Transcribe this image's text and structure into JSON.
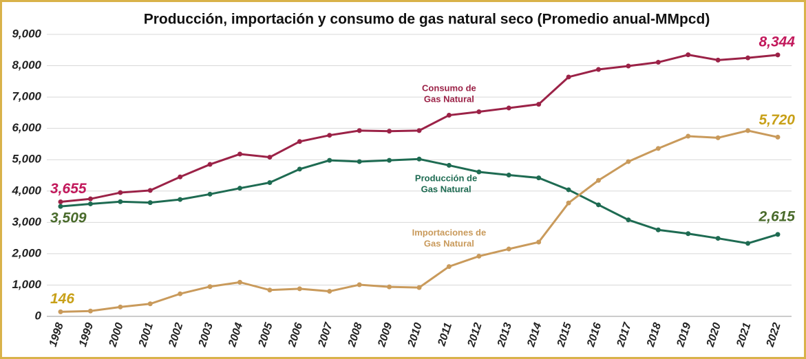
{
  "chart_data": {
    "type": "line",
    "title": "Producción, importación y consumo de gas natural seco (Promedio anual-MMpcd)",
    "categories": [
      "1998",
      "1999",
      "2000",
      "2001",
      "2002",
      "2003",
      "2004",
      "2005",
      "2006",
      "2007",
      "2008",
      "2009",
      "2010",
      "2011",
      "2012",
      "2013",
      "2014",
      "2015",
      "2016",
      "2017",
      "2018",
      "2019",
      "2020",
      "2021",
      "2022"
    ],
    "ylim": [
      0,
      9000
    ],
    "yticks": [
      0,
      {
        "value": 1000,
        "label": "1,000"
      },
      {
        "value": 2000,
        "label": "2,000"
      },
      {
        "value": 3000,
        "label": "3,000"
      },
      {
        "value": 4000,
        "label": "4,000"
      },
      {
        "value": 5000,
        "label": "5,000"
      },
      {
        "value": 6000,
        "label": "6,000"
      },
      {
        "value": 7000,
        "label": "7,000"
      },
      {
        "value": 8000,
        "label": "8,000"
      },
      {
        "value": 9000,
        "label": "9,000"
      }
    ],
    "grid": true,
    "series": [
      {
        "name": "Consumo de Gas Natural",
        "color": "#9b2247",
        "label_color": "#c2185b",
        "values": [
          3655,
          3750,
          3950,
          4020,
          4450,
          4850,
          5180,
          5080,
          5580,
          5780,
          5930,
          5910,
          5930,
          6420,
          6530,
          6650,
          6770,
          7640,
          7880,
          7990,
          8110,
          8350,
          8180,
          8250,
          8344
        ],
        "value_labels": [
          "3,655",
          null,
          null,
          null,
          null,
          null,
          null,
          null,
          null,
          null,
          null,
          null,
          null,
          null,
          null,
          null,
          null,
          null,
          null,
          null,
          null,
          null,
          null,
          null,
          "8,344"
        ]
      },
      {
        "name": "Producción de Gas Natural",
        "color": "#1e6b52",
        "label_color": "#4a6b2c",
        "values": [
          3509,
          3590,
          3660,
          3630,
          3730,
          3900,
          4090,
          4270,
          4700,
          4980,
          4940,
          4980,
          5020,
          4820,
          4610,
          4510,
          4420,
          4040,
          3560,
          3080,
          2760,
          2640,
          2490,
          2330,
          2615
        ],
        "value_labels": [
          "3,509",
          null,
          null,
          null,
          null,
          null,
          null,
          null,
          null,
          null,
          null,
          null,
          null,
          null,
          null,
          null,
          null,
          null,
          null,
          null,
          null,
          null,
          null,
          null,
          "2,615"
        ]
      },
      {
        "name": "Importaciones de Gas Natural",
        "color": "#c99a5b",
        "label_color": "#c8a018",
        "values": [
          146,
          170,
          300,
          400,
          720,
          950,
          1090,
          840,
          880,
          800,
          1010,
          940,
          920,
          1590,
          1920,
          2150,
          2370,
          3620,
          4340,
          4940,
          5360,
          5750,
          5700,
          5930,
          5720
        ],
        "value_labels": [
          "146",
          null,
          null,
          null,
          null,
          null,
          null,
          null,
          null,
          null,
          null,
          null,
          null,
          null,
          null,
          null,
          null,
          null,
          null,
          null,
          null,
          null,
          null,
          null,
          "5,720"
        ]
      }
    ]
  }
}
